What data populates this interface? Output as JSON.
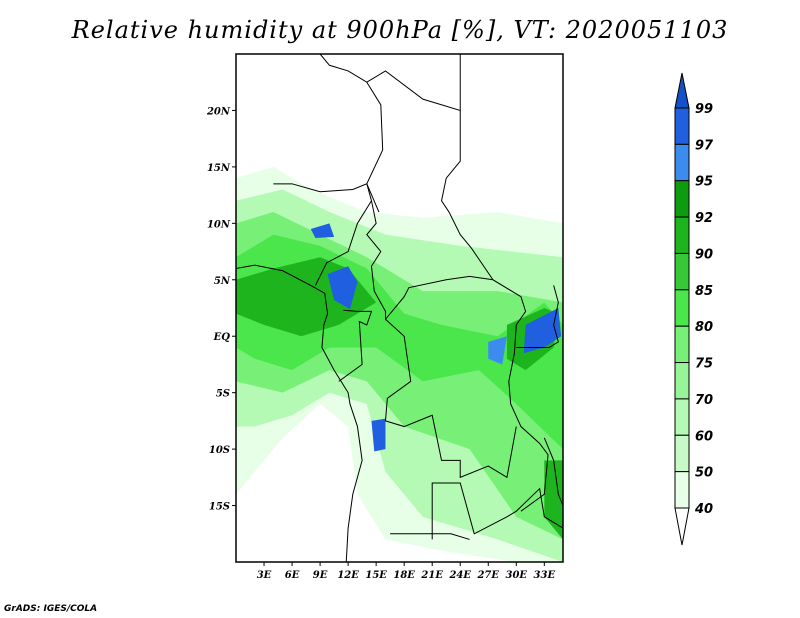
{
  "title": "Relative humidity at 900hPa [%], VT: 2020051103",
  "credit": "GrADS: IGES/COLA",
  "map": {
    "lon_range": [
      0,
      35
    ],
    "lat_range": [
      -20,
      25
    ],
    "x_ticks": [
      {
        "lon": 3,
        "label": "3E"
      },
      {
        "lon": 6,
        "label": "6E"
      },
      {
        "lon": 9,
        "label": "9E"
      },
      {
        "lon": 12,
        "label": "12E"
      },
      {
        "lon": 15,
        "label": "15E"
      },
      {
        "lon": 18,
        "label": "18E"
      },
      {
        "lon": 21,
        "label": "21E"
      },
      {
        "lon": 24,
        "label": "24E"
      },
      {
        "lon": 27,
        "label": "27E"
      },
      {
        "lon": 30,
        "label": "30E"
      },
      {
        "lon": 33,
        "label": "33E"
      }
    ],
    "y_ticks": [
      {
        "lat": 20,
        "label": "20N"
      },
      {
        "lat": 15,
        "label": "15N"
      },
      {
        "lat": 10,
        "label": "10N"
      },
      {
        "lat": 5,
        "label": "5N"
      },
      {
        "lat": 0,
        "label": "EQ"
      },
      {
        "lat": -5,
        "label": "5S"
      },
      {
        "lat": -10,
        "label": "10S"
      },
      {
        "lat": -15,
        "label": "15S"
      }
    ]
  },
  "colorbar": {
    "labels": [
      "99",
      "97",
      "95",
      "92",
      "90",
      "85",
      "80",
      "75",
      "70",
      "60",
      "50",
      "40"
    ],
    "colors": [
      "#1f5fe0",
      "#3c8cf0",
      "#0f9b0f",
      "#1eb41e",
      "#37c837",
      "#4be64b",
      "#78f078",
      "#96f596",
      "#b4fab4",
      "#c8fac8",
      "#e6ffe6"
    ],
    "top_arrow_color": "#1450c8",
    "bottom_arrow_color": "#ffffff"
  }
}
